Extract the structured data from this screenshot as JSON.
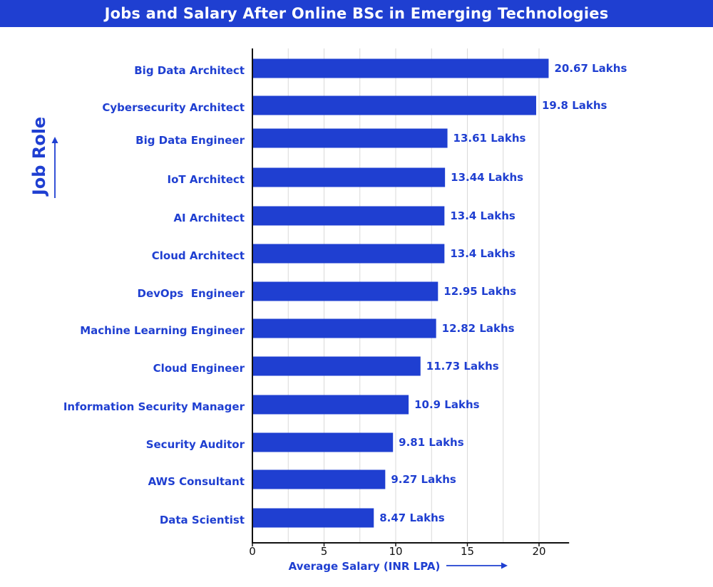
{
  "colors": {
    "bar": "#1f3fd1",
    "text": "#1f3fd1",
    "title_bg": "#1f3fd1",
    "title_text": "#ffffff",
    "grid": "#d9d9d9",
    "axis": "#111111"
  },
  "chart_data": {
    "type": "bar",
    "orientation": "horizontal",
    "title": "Jobs and Salary After Online BSc in Emerging Technologies",
    "xlabel": "Average Salary (INR LPA)",
    "ylabel": "Job Role",
    "xlim": [
      0,
      22
    ],
    "xticks": [
      0,
      5,
      10,
      15,
      20
    ],
    "grid": "vertical",
    "categories": [
      "Big Data Architect",
      "Cybersecurity Architect",
      "Big Data Engineer",
      "IoT Architect",
      "AI Architect",
      "Cloud Architect",
      "DevOps  Engineer",
      "Machine Learning Engineer",
      "Cloud Engineer",
      "Information Security Manager",
      "Security Auditor",
      "AWS Consultant",
      "Data Scientist"
    ],
    "values": [
      20.67,
      19.8,
      13.61,
      13.44,
      13.4,
      13.4,
      12.95,
      12.82,
      11.73,
      10.9,
      9.81,
      9.27,
      8.47
    ],
    "value_labels": [
      "20.67 Lakhs",
      "19.8 Lakhs",
      "13.61 Lakhs",
      "13.44 Lakhs",
      "13.4 Lakhs",
      "13.4 Lakhs",
      "12.95 Lakhs",
      "12.82 Lakhs",
      "11.73 Lakhs",
      "10.9 Lakhs",
      "9.81 Lakhs",
      "9.27 Lakhs",
      "8.47 Lakhs"
    ]
  }
}
